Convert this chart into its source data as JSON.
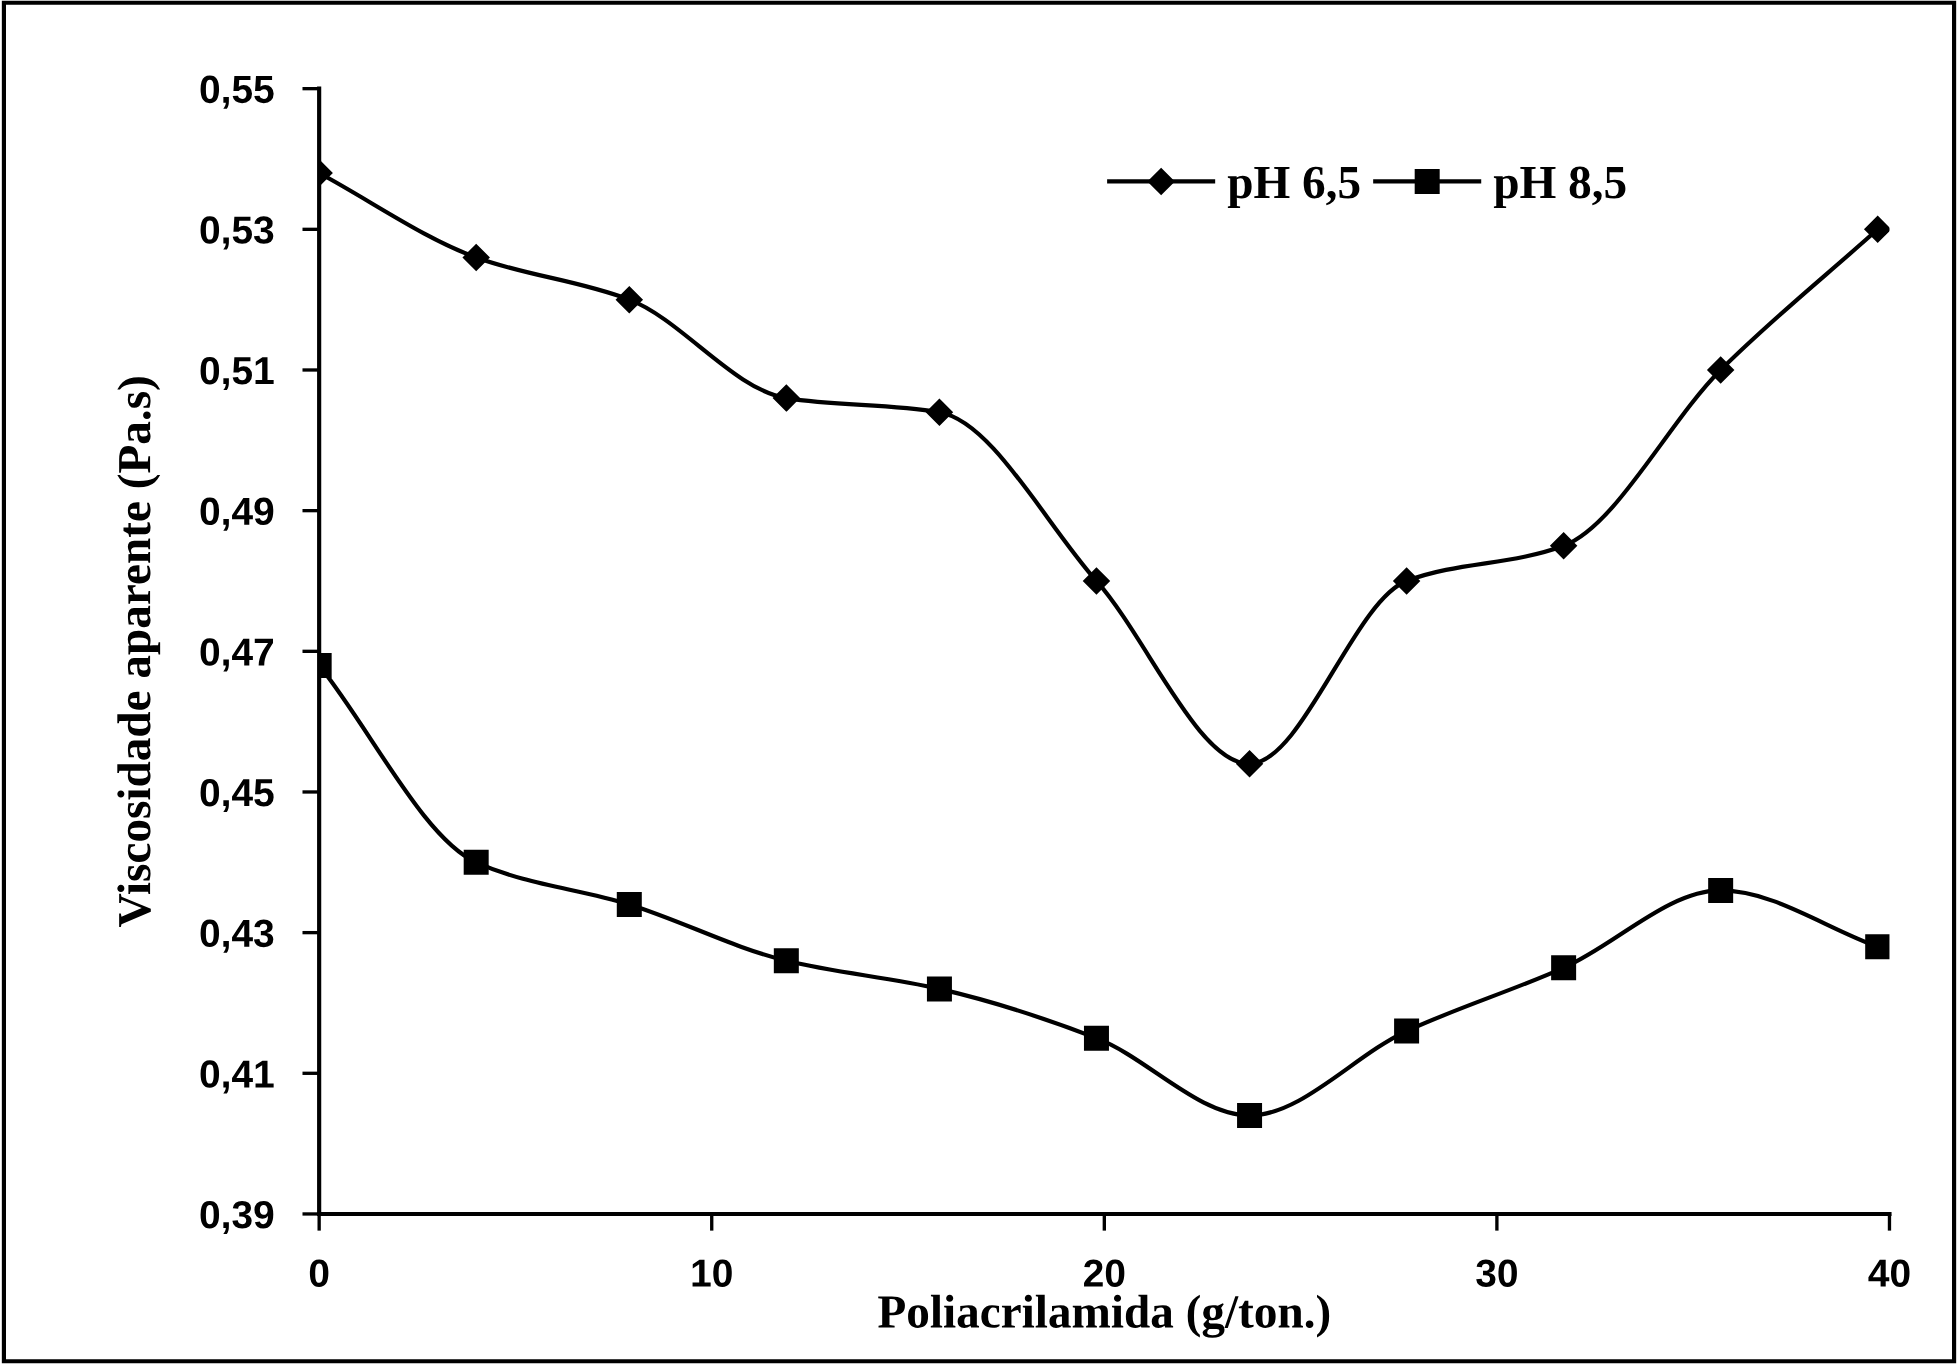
{
  "chart_data": {
    "type": "line",
    "xlabel": "Poliacrilamida (g/ton.)",
    "ylabel": "Viscosidade aparente (Pa.s)",
    "xlim": [
      0,
      40
    ],
    "xticks": [
      0,
      10,
      20,
      30,
      40
    ],
    "ylim": [
      0.39,
      0.55
    ],
    "yticks": [
      {
        "value": 0.39,
        "label": "0,39"
      },
      {
        "value": 0.41,
        "label": "0,41"
      },
      {
        "value": 0.43,
        "label": "0,43"
      },
      {
        "value": 0.45,
        "label": "0,45"
      },
      {
        "value": 0.47,
        "label": "0,47"
      },
      {
        "value": 0.49,
        "label": "0,49"
      },
      {
        "value": 0.51,
        "label": "0,51"
      },
      {
        "value": 0.53,
        "label": "0,53"
      },
      {
        "value": 0.55,
        "label": "0,55"
      }
    ],
    "grid": false,
    "legend": "top right",
    "x": [
      0,
      4,
      7.9,
      11.9,
      15.8,
      19.8,
      23.7,
      27.7,
      31.7,
      35.7,
      39.7
    ],
    "series": [
      {
        "name": "pH 6,5",
        "color": "#000000",
        "marker": "diamond",
        "values": [
          0.538,
          0.526,
          0.52,
          0.506,
          0.504,
          0.48,
          0.454,
          0.48,
          0.485,
          0.51,
          0.53
        ]
      },
      {
        "name": "pH 8,5",
        "color": "#000000",
        "marker": "square",
        "values": [
          0.468,
          0.44,
          0.434,
          0.426,
          0.422,
          0.415,
          0.404,
          0.416,
          0.425,
          0.436,
          0.428
        ]
      }
    ]
  }
}
